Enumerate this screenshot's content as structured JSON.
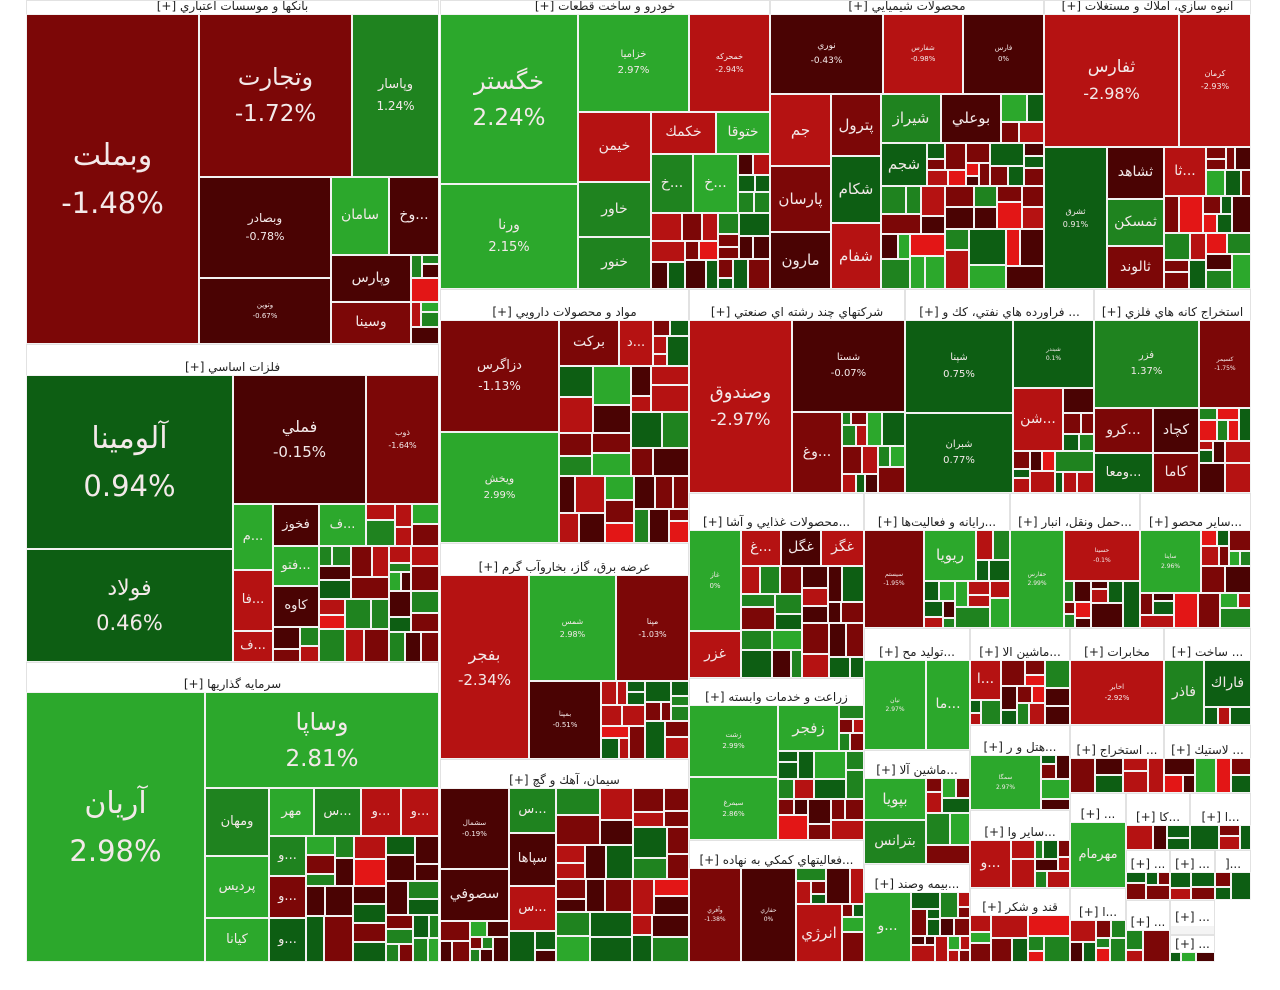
{
  "palette": {
    "dr": "#4a0303",
    "mr": "#7c0707",
    "r": "#b51212",
    "br": "#e31616",
    "dg": "#0d5e13",
    "g": "#1f831f",
    "lg": "#2ca82c"
  },
  "sectors": [
    {
      "title": "بانکها و موسسات اعتباري [+]",
      "tiles": [
        {
          "symbol": "وبملت",
          "change": "-1.48%",
          "color": "mr"
        },
        {
          "symbol": "وتجارت",
          "change": "-1.72%",
          "color": "mr"
        },
        {
          "symbol": "وپاسار",
          "change": "1.24%",
          "color": "g"
        },
        {
          "symbol": "وبصادر",
          "change": "-0.78%",
          "color": "dr"
        },
        {
          "symbol": "وتوين",
          "change": "-0.67%",
          "color": "dr"
        },
        {
          "symbol": "سامان",
          "color": "lg"
        },
        {
          "symbol": "...وخ",
          "color": "dr"
        },
        {
          "symbol": "وپارس",
          "color": "dr"
        },
        {
          "symbol": "وسينا",
          "color": "mr"
        }
      ]
    },
    {
      "title": "فلزات اساسي [+]",
      "tiles": [
        {
          "symbol": "آلومينا",
          "change": "0.94%",
          "color": "dg"
        },
        {
          "symbol": "فولاد",
          "change": "0.46%",
          "color": "dg"
        },
        {
          "symbol": "فملي",
          "change": "-0.15%",
          "color": "dr"
        },
        {
          "symbol": "ذوب",
          "change": "-1.64%",
          "color": "mr"
        },
        {
          "symbol": "...م",
          "color": "lg"
        },
        {
          "symbol": "فخوز",
          "color": "dr"
        },
        {
          "symbol": "...ف",
          "color": "lg"
        },
        {
          "symbol": "...فتو",
          "color": "lg"
        },
        {
          "symbol": "...فا",
          "color": "r"
        },
        {
          "symbol": "...ف",
          "color": "r"
        },
        {
          "symbol": "كاوه",
          "color": "dr"
        }
      ]
    },
    {
      "title": "سرمايه گذاريها [+]",
      "tiles": [
        {
          "symbol": "آريان",
          "change": "2.98%",
          "color": "lg"
        },
        {
          "symbol": "وساپا",
          "change": "2.81%",
          "color": "lg"
        },
        {
          "symbol": "ومهان",
          "color": "g"
        },
        {
          "symbol": "پرديس",
          "color": "lg"
        },
        {
          "symbol": "كيانا",
          "color": "lg"
        },
        {
          "symbol": "مهر",
          "color": "lg"
        },
        {
          "symbol": "...س",
          "color": "g"
        },
        {
          "symbol": "...و",
          "color": "r"
        },
        {
          "symbol": "...و",
          "color": "r"
        },
        {
          "symbol": "...و",
          "color": "g"
        },
        {
          "symbol": "...و",
          "color": "mr"
        },
        {
          "symbol": "...و",
          "color": "dg"
        }
      ]
    },
    {
      "title": "خودرو و ساخت قطعات [+]",
      "tiles": [
        {
          "symbol": "خگستر",
          "change": "2.24%",
          "color": "lg"
        },
        {
          "symbol": "ورنا",
          "change": "2.15%",
          "color": "lg"
        },
        {
          "symbol": "خزامیا",
          "change": "2.97%",
          "color": "lg"
        },
        {
          "symbol": "خمحركه",
          "change": "-2.94%",
          "color": "r"
        },
        {
          "symbol": "خيمن",
          "color": "r"
        },
        {
          "symbol": "خكمك",
          "color": "r"
        },
        {
          "symbol": "ختوقا",
          "color": "lg"
        },
        {
          "symbol": "خاور",
          "color": "g"
        },
        {
          "symbol": "خنور",
          "color": "g"
        },
        {
          "symbol": "...خ",
          "color": "g"
        },
        {
          "symbol": "...خ",
          "color": "lg"
        }
      ]
    },
    {
      "title": "محصولات شيميايي [+]",
      "tiles": [
        {
          "symbol": "نوري",
          "change": "-0.43%",
          "color": "dr"
        },
        {
          "symbol": "شفارس",
          "change": "-0.98%",
          "color": "r"
        },
        {
          "symbol": "فارس",
          "change": "0%",
          "color": "dr"
        },
        {
          "symbol": "جم",
          "color": "r"
        },
        {
          "symbol": "پترول",
          "color": "mr"
        },
        {
          "symbol": "پارسان",
          "color": "mr"
        },
        {
          "symbol": "شكام",
          "color": "dg"
        },
        {
          "symbol": "مارون",
          "color": "dr"
        },
        {
          "symbol": "شفام",
          "color": "r"
        },
        {
          "symbol": "شيراز",
          "color": "g"
        },
        {
          "symbol": "بوعلي",
          "color": "dr"
        },
        {
          "symbol": "شجم",
          "color": "dg"
        }
      ]
    },
    {
      "title": "انبوه سازي، املاك و مستغلات [+]",
      "tiles": [
        {
          "symbol": "ثفارس",
          "change": "-2.98%",
          "color": "r"
        },
        {
          "symbol": "كرمان",
          "change": "-2.93%",
          "color": "r"
        },
        {
          "symbol": "ثشرق",
          "change": "0.91%",
          "color": "dg"
        },
        {
          "symbol": "ثشاهد",
          "color": "dr"
        },
        {
          "symbol": "ثمسكن",
          "color": "g"
        },
        {
          "symbol": "ثالوند",
          "color": "mr"
        },
        {
          "symbol": "...ثا",
          "color": "r"
        }
      ]
    },
    {
      "title": "مواد و محصولات دارويي [+]",
      "tiles": [
        {
          "symbol": "دزاگرس",
          "change": "-1.13%",
          "color": "mr"
        },
        {
          "symbol": "ويخش",
          "change": "2.99%",
          "color": "lg"
        },
        {
          "symbol": "بركت",
          "color": "mr"
        },
        {
          "symbol": "...د",
          "color": "r"
        }
      ]
    },
    {
      "title": "عرضه برق، گاز، بخاروآب گرم [+]",
      "tiles": [
        {
          "symbol": "بفجر",
          "change": "-2.34%",
          "color": "r"
        },
        {
          "symbol": "شمس",
          "change": "2.98%",
          "color": "lg"
        },
        {
          "symbol": "مپنا",
          "change": "-1.03%",
          "color": "mr"
        },
        {
          "symbol": "بمپنا",
          "change": "-0.51%",
          "color": "dr"
        }
      ]
    },
    {
      "title": "سيمان، آهك و گچ [+]",
      "tiles": [
        {
          "symbol": "سشمال",
          "change": "-0.19%",
          "color": "dr"
        },
        {
          "symbol": "سصوفي",
          "color": "dr"
        },
        {
          "symbol": "...س",
          "color": "g"
        },
        {
          "symbol": "سپاها",
          "color": "dr"
        },
        {
          "symbol": "...س",
          "color": "r"
        }
      ]
    },
    {
      "title": "شركتهاي چند رشته اي صنعتي [+]",
      "tiles": [
        {
          "symbol": "وصندوق",
          "change": "-2.97%",
          "color": "r"
        },
        {
          "symbol": "شستا",
          "change": "-0.07%",
          "color": "dr"
        },
        {
          "symbol": "...وغ",
          "color": "mr"
        }
      ]
    },
    {
      "title": "... فراورده هاي نفتي، كك و [+]",
      "tiles": [
        {
          "symbol": "شپنا",
          "change": "0.75%",
          "color": "dg"
        },
        {
          "symbol": "شبران",
          "change": "0.77%",
          "color": "dg"
        },
        {
          "symbol": "شبندر",
          "change": "0.1%",
          "color": "dg"
        },
        {
          "symbol": "...شن",
          "color": "r"
        }
      ]
    },
    {
      "title": "استخراج كانه هاي فلزي [+]",
      "tiles": [
        {
          "symbol": "فزر",
          "change": "1.37%",
          "color": "g"
        },
        {
          "symbol": "كسيمر",
          "change": "-1.75%",
          "color": "mr"
        },
        {
          "symbol": "...كرو",
          "color": "mr"
        },
        {
          "symbol": "كچاد",
          "color": "dr"
        },
        {
          "symbol": "...ومعا",
          "color": "dg"
        },
        {
          "symbol": "كاما",
          "color": "mr"
        }
      ]
    },
    {
      "title": "...محصولات غذايي و آشا [+]",
      "tiles": [
        {
          "symbol": "غاز",
          "change": "0%",
          "color": "lg"
        },
        {
          "symbol": "غزر",
          "color": "r"
        },
        {
          "symbol": "...غ",
          "color": "r"
        },
        {
          "symbol": "غگل",
          "color": "dr"
        },
        {
          "symbol": "غگز",
          "color": "r"
        }
      ]
    },
    {
      "title": "...رايانه و فعاليت‌ها [+]",
      "tiles": [
        {
          "symbol": "سيستم",
          "change": "-1.95%",
          "color": "mr"
        },
        {
          "symbol": "ريويا",
          "color": "lg"
        }
      ]
    },
    {
      "title": "...حمل ونقل، انبار [+]",
      "tiles": [
        {
          "symbol": "حفارس",
          "change": "2.99%",
          "color": "lg"
        },
        {
          "symbol": "حسينا",
          "change": "-0.1%",
          "color": "r"
        }
      ]
    },
    {
      "title": "...ساير محصو [+]",
      "tiles": [
        {
          "symbol": "ساينا",
          "change": "2.96%",
          "color": "lg"
        }
      ]
    },
    {
      "title": "زراعت و خدمات وابسته [+]",
      "tiles": [
        {
          "symbol": "زشت",
          "change": "2.99%",
          "color": "lg"
        },
        {
          "symbol": "زفجر",
          "color": "lg"
        },
        {
          "symbol": "سيمرغ",
          "change": "2.86%",
          "color": "lg"
        }
      ]
    },
    {
      "title": "...فعاليتهاي كمكي به نهاده [+]",
      "tiles": [
        {
          "symbol": "وآفري",
          "change": "-1.38%",
          "color": "mr"
        },
        {
          "symbol": "حفاري",
          "change": "0%",
          "color": "dr"
        },
        {
          "symbol": "انرژي",
          "color": "r"
        }
      ]
    },
    {
      "title": "...توليد مح [+]",
      "tiles": [
        {
          "symbol": "نيان",
          "change": "2.97%",
          "color": "lg"
        },
        {
          "symbol": "...ما",
          "color": "lg"
        }
      ]
    },
    {
      "title": "...ماشين آلا [+]",
      "tiles": [
        {
          "symbol": "بپويا",
          "color": "lg"
        },
        {
          "symbol": "بترانس",
          "color": "g"
        }
      ]
    },
    {
      "title": "...بيمه وصند [+]",
      "tiles": [
        {
          "symbol": "...و",
          "color": "lg"
        }
      ]
    },
    {
      "title": "...ماشين الا [+]",
      "tiles": [
        {
          "symbol": "...ا",
          "color": "r"
        }
      ]
    },
    {
      "title": "...هتل و ر [+]",
      "tiles": [
        {
          "symbol": "سمگا",
          "change": "2.97%",
          "color": "lg"
        }
      ]
    },
    {
      "title": "...ساير وا [+]",
      "tiles": [
        {
          "symbol": "...و",
          "color": "r"
        }
      ]
    },
    {
      "title": "قند و شكر [+]",
      "tiles": []
    },
    {
      "title": "مخابرات [+]",
      "tiles": [
        {
          "symbol": "اخابر",
          "change": "-2.92%",
          "color": "r"
        }
      ]
    },
    {
      "title": "... ساخت [+]",
      "tiles": [
        {
          "symbol": "فاذر",
          "color": "g"
        },
        {
          "symbol": "فاراك",
          "color": "dg"
        }
      ]
    },
    {
      "title": "... استخراج [+]",
      "tiles": []
    },
    {
      "title": "... لاستيك [+]",
      "tiles": []
    },
    {
      "title": "... [+]",
      "tiles": [
        {
          "symbol": "مهرمام",
          "color": "lg"
        }
      ]
    },
    {
      "title": "...كا [+]",
      "tiles": []
    },
    {
      "title": "...ا [+]",
      "tiles": []
    },
    {
      "title": "... [+]",
      "tiles": []
    },
    {
      "title": "... [+]",
      "tiles": []
    },
    {
      "title": "...[",
      "tiles": []
    },
    {
      "title": "...ا [+]",
      "tiles": []
    },
    {
      "title": "... [+]",
      "tiles": []
    },
    {
      "title": "... [+]",
      "tiles": []
    },
    {
      "title": "... [+]",
      "tiles": []
    }
  ]
}
